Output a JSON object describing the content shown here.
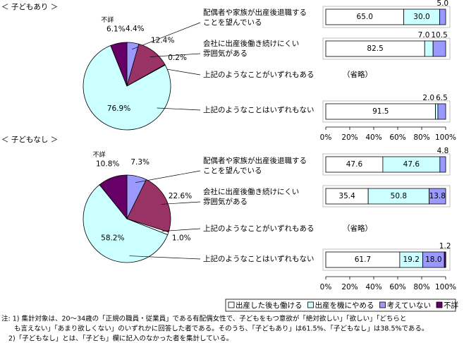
{
  "chart_data": [
    {
      "type": "pie",
      "title": "＜ 子どもあり ＞",
      "categories": [
        null,
        null,
        null,
        null,
        "不詳"
      ],
      "values": [
        4.4,
        12.4,
        0.2,
        76.9,
        6.1
      ],
      "value_labels": [
        "4.4%",
        "12.4%",
        "0.2%",
        "76.9%",
        "6.1%"
      ],
      "colors": [
        "#9999ff",
        "#993366",
        "#ffffff",
        "#ccffff",
        "#660066"
      ]
    },
    {
      "type": "stacked-bar",
      "orientation": "horizontal",
      "categories": [
        [
          "配偶者や家族が出産後退職する",
          "ことを望んでいる"
        ],
        [
          "会社に出産後働き続けにくい",
          "雰囲気がある"
        ],
        [
          "上記のようなことがいずれもある"
        ],
        [
          "上記のようなことはいずれもない"
        ]
      ],
      "note": "（省略）",
      "series": [
        {
          "name": "出産した後も働ける",
          "color": "#ffffff",
          "values": [
            65.0,
            82.5,
            null,
            91.5
          ],
          "value_labels": [
            "65.0",
            "82.5",
            null,
            "91.5"
          ]
        },
        {
          "name": "出産を機にやめる",
          "color": "#ccffff",
          "values": [
            30.0,
            7.0,
            null,
            2.0
          ],
          "value_labels": [
            "30.0",
            "7.0",
            null,
            "2.0"
          ]
        },
        {
          "name": "考えていない",
          "color": "#9999ff",
          "values": [
            5.0,
            10.5,
            null,
            6.5
          ],
          "value_labels": [
            "5.0",
            "10.5",
            null,
            "6.5"
          ]
        },
        {
          "name": "不詳",
          "color": "#660066",
          "values": [
            null,
            null,
            null,
            null
          ]
        }
      ],
      "xlim": [
        0,
        100
      ],
      "xticks": [
        {
          "value": 0,
          "label": "0%"
        },
        {
          "value": 20,
          "label": "20%"
        },
        {
          "value": 40,
          "label": "40%"
        },
        {
          "value": 60,
          "label": "60%"
        },
        {
          "value": 80,
          "label": "80%"
        },
        {
          "value": 100,
          "label": "100%"
        }
      ]
    },
    {
      "type": "pie",
      "title": "＜ 子どもなし ＞",
      "categories": [
        null,
        null,
        null,
        null,
        "不詳"
      ],
      "values": [
        7.3,
        22.6,
        1.0,
        58.2,
        10.8
      ],
      "value_labels": [
        "7.3%",
        "22.6%",
        "1.0%",
        "58.2%",
        "10.8%"
      ],
      "colors": [
        "#9999ff",
        "#993366",
        "#ffffff",
        "#ccffff",
        "#660066"
      ]
    },
    {
      "type": "stacked-bar",
      "orientation": "horizontal",
      "categories": [
        [
          "配偶者や家族が出産後退職する",
          "ことを望んでいる"
        ],
        [
          "会社に出産後働き続けにくい",
          "雰囲気がある"
        ],
        [
          "上記のようなことがいずれもある"
        ],
        [
          "上記のようなことはいずれもない"
        ]
      ],
      "note": "（省略）",
      "series": [
        {
          "color": "#ffffff",
          "values": [
            47.6,
            35.4,
            null,
            61.7
          ],
          "value_labels": [
            "47.6",
            "35.4",
            null,
            "61.7"
          ]
        },
        {
          "color": "#ccffff",
          "values": [
            47.6,
            50.8,
            null,
            19.2
          ],
          "value_labels": [
            "47.6",
            "50.8",
            null,
            "19.2"
          ]
        },
        {
          "color": "#9999ff",
          "values": [
            4.8,
            13.8,
            null,
            18.0
          ],
          "value_labels": [
            "4.8",
            "13.8",
            null,
            "18.0"
          ]
        },
        {
          "color": "#660066",
          "values": [
            null,
            null,
            null,
            1.2
          ],
          "value_labels": [
            null,
            null,
            null,
            "1.2"
          ]
        }
      ],
      "xlim": [
        0,
        100
      ],
      "xticks": [
        {
          "value": 0,
          "label": "0%"
        },
        {
          "value": 20,
          "label": "20%"
        },
        {
          "value": 40,
          "label": "40%"
        },
        {
          "value": 60,
          "label": "60%"
        },
        {
          "value": 80,
          "label": "80%"
        },
        {
          "value": 100,
          "label": "100%"
        }
      ]
    }
  ],
  "notes": [
    "注: 1) 集計対象は、20～34歳の「正規の職員・従業員」である有配偶女性で、子どもをもつ意欲が「絶対欲しい」「欲しい」「どちらと",
    "も言えない」「あまり欲しくない」のいずれかに回答した者である。そのうち、「子どもあり」は61.5%、「子どもなし」は38.5%である。",
    "2)「子どもなし」とは、「子ども」欄に記入のなかった者を集計している。"
  ]
}
